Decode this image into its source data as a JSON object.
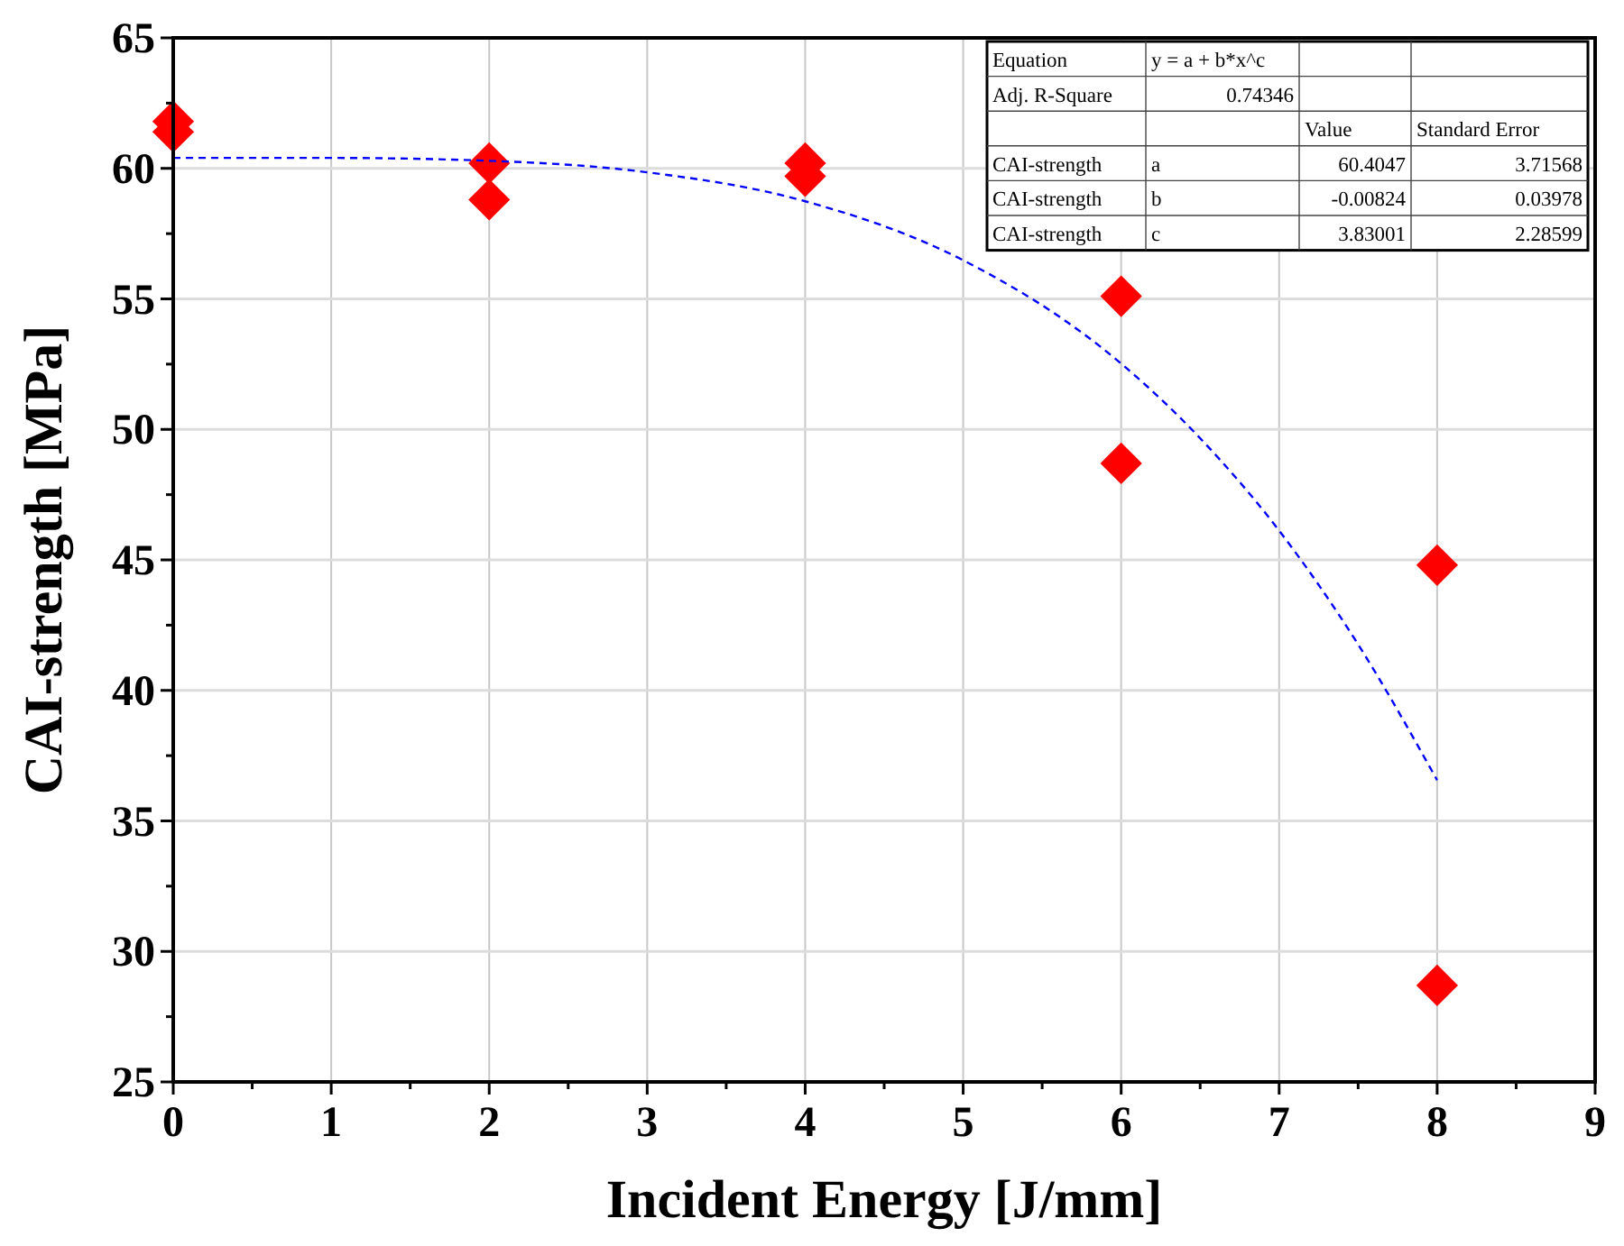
{
  "chart_data": {
    "type": "scatter",
    "xlabel": "Incident Energy [J/mm]",
    "ylabel": "CAI-strength [MPa]",
    "xlim": [
      0,
      9
    ],
    "xticks": [
      0,
      {
        "value": 0.5,
        "label": null
      },
      1,
      {
        "value": 1.5,
        "label": null
      },
      2,
      {
        "value": 2.5,
        "label": null
      },
      3,
      {
        "value": 3.5,
        "label": null
      },
      4,
      {
        "value": 4.5,
        "label": null
      },
      5,
      {
        "value": 5.5,
        "label": null
      },
      6,
      {
        "value": 6.5,
        "label": null
      },
      7,
      {
        "value": 7.5,
        "label": null
      },
      8,
      {
        "value": 8.5,
        "label": null
      },
      9
    ],
    "ylim": [
      25,
      65
    ],
    "yticks": [
      25,
      {
        "value": 27.5,
        "label": null
      },
      30,
      {
        "value": 32.5,
        "label": null
      },
      35,
      {
        "value": 37.5,
        "label": null
      },
      40,
      {
        "value": 42.5,
        "label": null
      },
      45,
      {
        "value": 47.5,
        "label": null
      },
      50,
      {
        "value": 52.5,
        "label": null
      },
      55,
      {
        "value": 57.5,
        "label": null
      },
      60,
      {
        "value": 62.5,
        "label": null
      },
      65
    ],
    "grid": true,
    "series": [
      {
        "color": "#ff0000",
        "marker": "diamond",
        "x": [
          0,
          0,
          2,
          2,
          4,
          4,
          6,
          6,
          8,
          8
        ],
        "values": [
          61.8,
          61.4,
          60.2,
          58.8,
          60.2,
          59.7,
          55.1,
          48.7,
          44.8,
          28.7
        ]
      },
      {
        "type": "line",
        "color": "#0000ff",
        "marker": "none",
        "line_style": "dashed",
        "x": [
          0,
          1,
          2,
          3,
          4,
          5,
          6,
          6.5,
          7,
          7.5,
          8
        ],
        "values": [
          60.4,
          60.4,
          60.29,
          59.85,
          58.74,
          56.48,
          52.52,
          49.66,
          46.12,
          41.76,
          36.56
        ]
      }
    ],
    "annotations": [
      "Equation",
      "y = a + b*x^c",
      "Adj. R-Square",
      "0.74346",
      "Value",
      "Standard Error",
      "CAI-strength",
      "a",
      "60.4047",
      "3.71568",
      "CAI-strength",
      "b",
      "-0.00824",
      "0.03978",
      "CAI-strength",
      "c",
      "3.83001",
      "2.28599"
    ]
  }
}
